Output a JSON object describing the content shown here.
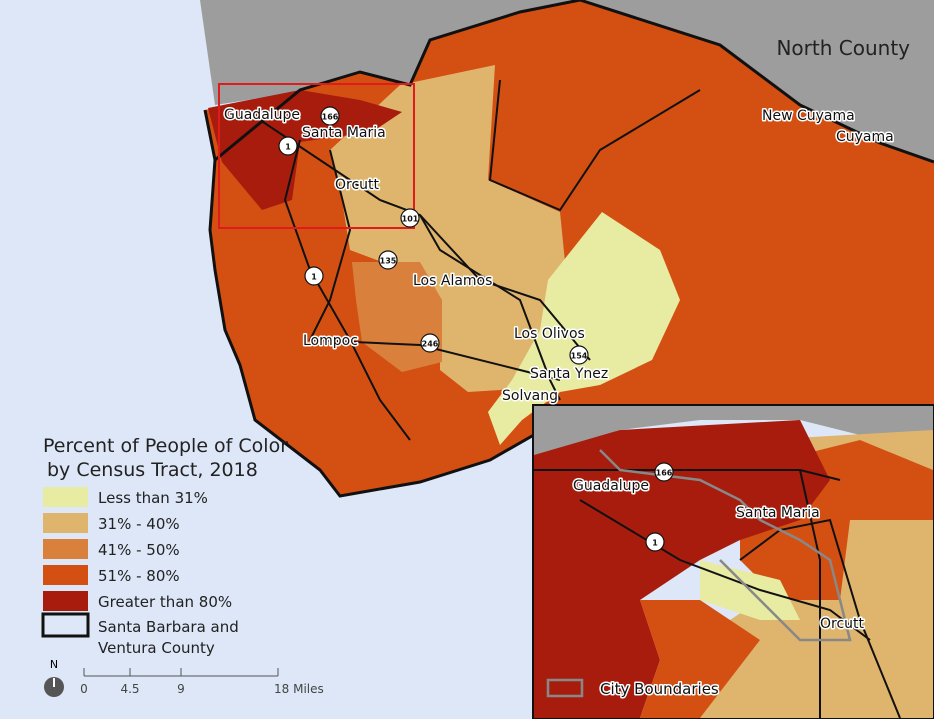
{
  "region_label": "North County",
  "places": [
    "Guadalupe",
    "Santa Maria",
    "Orcutt",
    "Los Alamos",
    "Lompoc",
    "Los Olivos",
    "Santa Ynez",
    "Solvang",
    "New Cuyama",
    "Cuyama"
  ],
  "highways": [
    "166",
    "1",
    "101",
    "135",
    "1",
    "246",
    "154"
  ],
  "legend": {
    "title": [
      "Percent of People of Color",
      "by Census Tract, 2018"
    ],
    "items": [
      {
        "label": "Less than 31%",
        "color": "#e8eca3"
      },
      {
        "label": "31% - 40%",
        "color": "#dfb46c"
      },
      {
        "label": "41% - 50%",
        "color": "#d9803d"
      },
      {
        "label": "51% - 80%",
        "color": "#d45012"
      },
      {
        "label": "Greater than 80%",
        "color": "#a71c0d"
      }
    ],
    "boundary": [
      "Santa Barbara and",
      "Ventura County"
    ]
  },
  "scale": {
    "north": "N",
    "ticks": [
      "0",
      "4.5",
      "9",
      "18 Miles"
    ]
  },
  "inset": {
    "places": [
      "Guadalupe",
      "Santa Maria",
      "Orcutt"
    ],
    "highways": [
      "166",
      "1"
    ],
    "legend": "City Boundaries"
  }
}
